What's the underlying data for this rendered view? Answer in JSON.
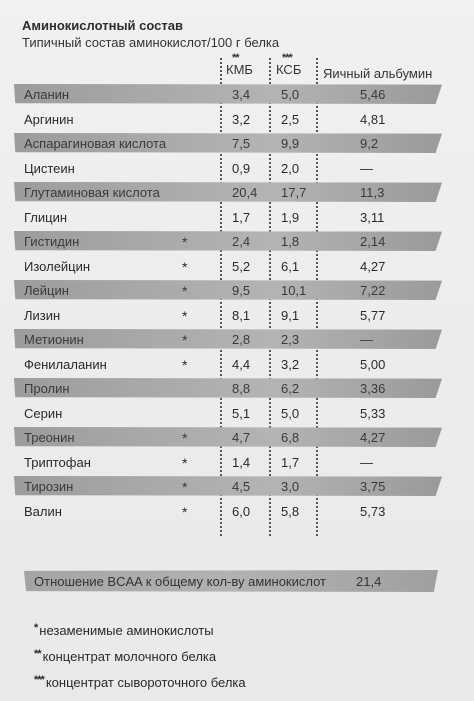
{
  "title": "Аминокислотный состав",
  "subtitle": "Типичный состав аминокислот/100 г белка",
  "columns": {
    "kmb": {
      "stars": "**",
      "label": "КМБ"
    },
    "ksb": {
      "stars": "***",
      "label": "КСБ"
    },
    "egg": {
      "label": "Яичный альбумин"
    }
  },
  "rows": [
    {
      "name": "Аланин",
      "star": "",
      "kmb": "3,4",
      "ksb": "5,0",
      "egg": "5,46",
      "shaded": true
    },
    {
      "name": "Аргинин",
      "star": "",
      "kmb": "3,2",
      "ksb": "2,5",
      "egg": "4,81",
      "shaded": false
    },
    {
      "name": "Аспарагиновая кислота",
      "star": "",
      "kmb": "7,5",
      "ksb": "9,9",
      "egg": "9,2",
      "shaded": true
    },
    {
      "name": "Цистеин",
      "star": "",
      "kmb": "0,9",
      "ksb": "2,0",
      "egg": "—",
      "shaded": false
    },
    {
      "name": "Глутаминовая кислота",
      "star": "",
      "kmb": "20,4",
      "ksb": "17,7",
      "egg": "11,3",
      "shaded": true
    },
    {
      "name": "Глицин",
      "star": "",
      "kmb": "1,7",
      "ksb": "1,9",
      "egg": "3,11",
      "shaded": false
    },
    {
      "name": "Гистидин",
      "star": "*",
      "kmb": "2,4",
      "ksb": "1,8",
      "egg": "2,14",
      "shaded": true
    },
    {
      "name": "Изолейцин",
      "star": "*",
      "kmb": "5,2",
      "ksb": "6,1",
      "egg": "4,27",
      "shaded": false
    },
    {
      "name": "Лейцин",
      "star": "*",
      "kmb": "9,5",
      "ksb": "10,1",
      "egg": "7,22",
      "shaded": true
    },
    {
      "name": "Лизин",
      "star": "*",
      "kmb": "8,1",
      "ksb": "9,1",
      "egg": "5,77",
      "shaded": false
    },
    {
      "name": "Метионин",
      "star": "*",
      "kmb": "2,8",
      "ksb": "2,3",
      "egg": "—",
      "shaded": true
    },
    {
      "name": "Фенилаланин",
      "star": "*",
      "kmb": "4,4",
      "ksb": "3,2",
      "egg": "5,00",
      "shaded": false
    },
    {
      "name": "Пролин",
      "star": "",
      "kmb": "8,8",
      "ksb": "6,2",
      "egg": "3,36",
      "shaded": true
    },
    {
      "name": "Серин",
      "star": "",
      "kmb": "5,1",
      "ksb": "5,0",
      "egg": "5,33",
      "shaded": false
    },
    {
      "name": "Треонин",
      "star": "*",
      "kmb": "4,7",
      "ksb": "6,8",
      "egg": "4,27",
      "shaded": true
    },
    {
      "name": "Триптофан",
      "star": "*",
      "kmb": "1,4",
      "ksb": "1,7",
      "egg": "—",
      "shaded": false
    },
    {
      "name": "Тирозин",
      "star": "*",
      "kmb": "4,5",
      "ksb": "3,0",
      "egg": "3,75",
      "shaded": true
    },
    {
      "name": "Валин",
      "star": "*",
      "kmb": "6,0",
      "ksb": "5,8",
      "egg": "5,73",
      "shaded": false
    }
  ],
  "bcaa": {
    "label": "Отношение BCAA к общему кол-ву аминокислот",
    "value": "21,4"
  },
  "footnotes": [
    {
      "mark": "*",
      "text": "незаменимые аминокислоты"
    },
    {
      "mark": "**",
      "text": "концентрат молочного белка"
    },
    {
      "mark": "***",
      "text": "концентрат сывороточного белка"
    }
  ],
  "colors": {
    "band": "#a8a8a8",
    "text": "#2a2a2a",
    "background": "#eeeeee"
  }
}
